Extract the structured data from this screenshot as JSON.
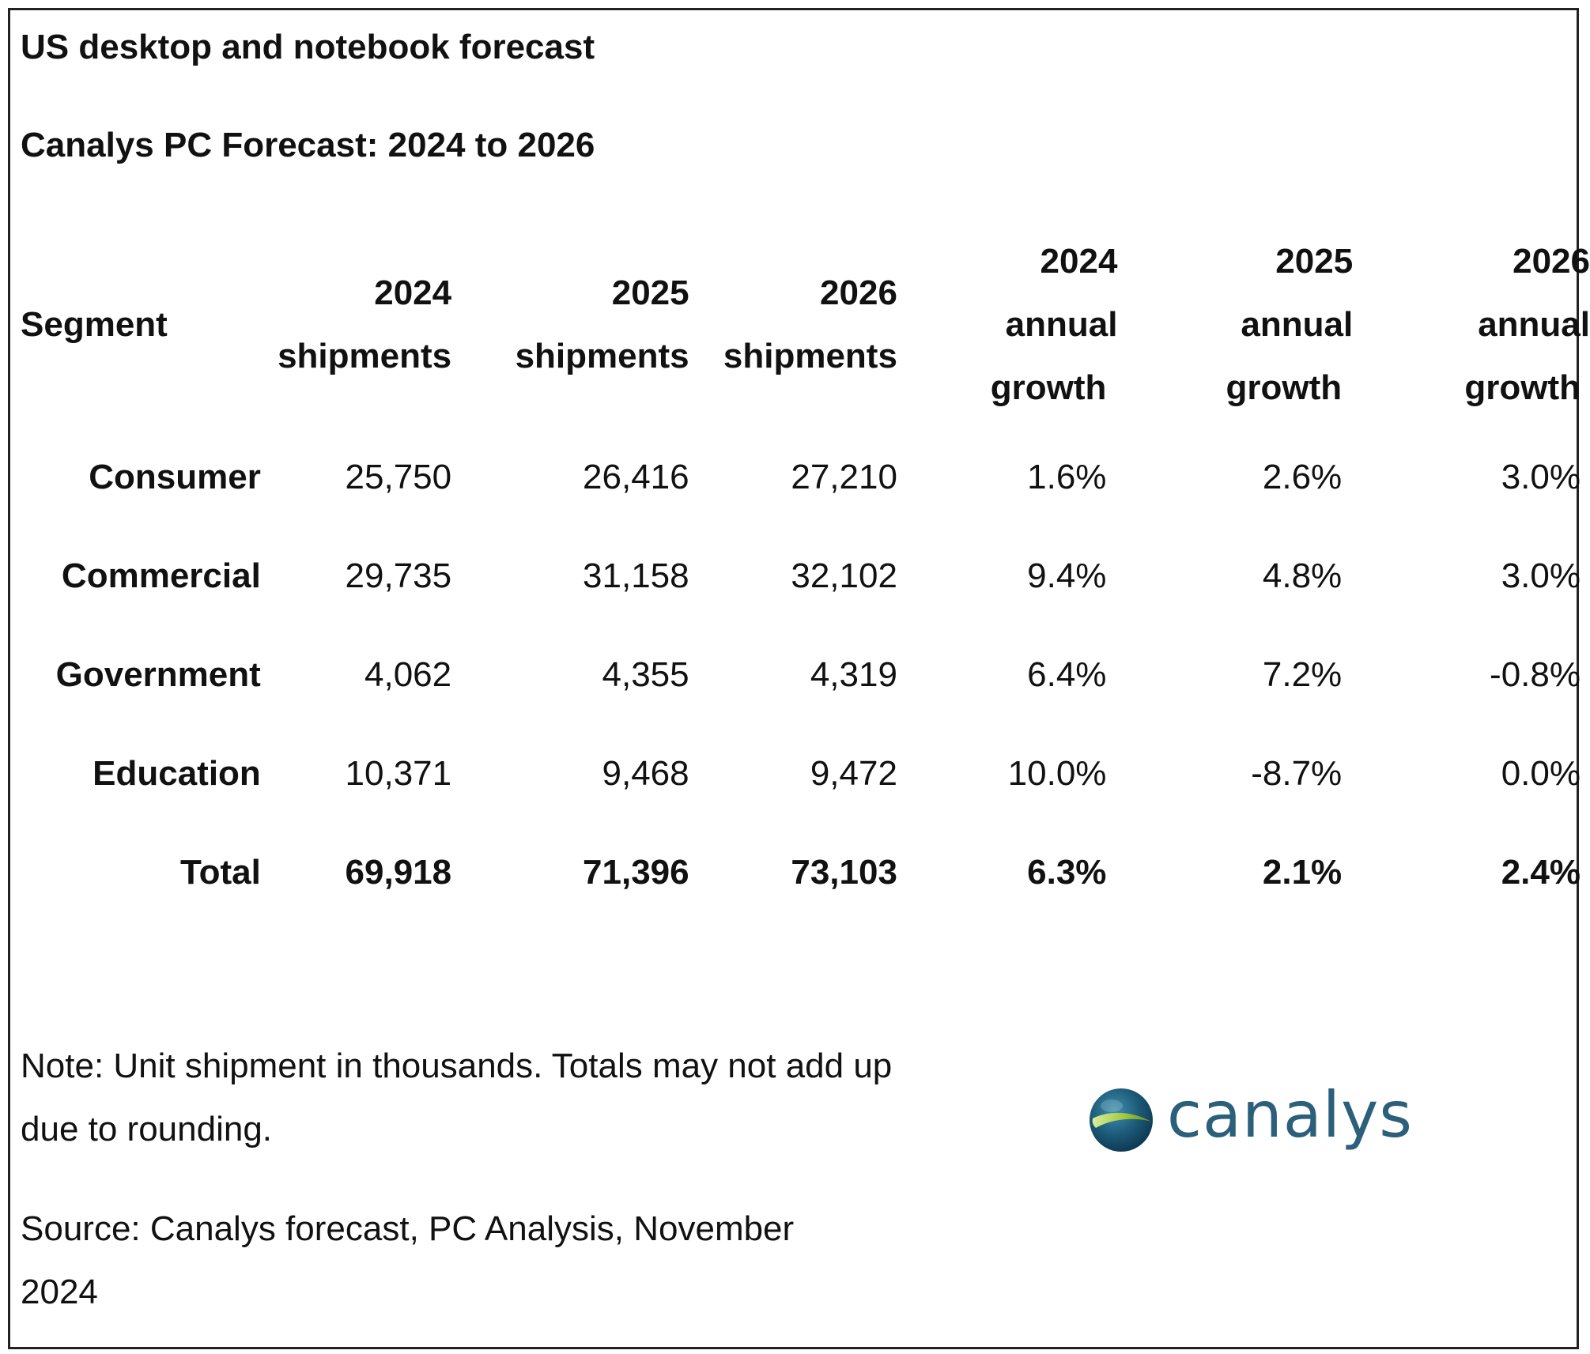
{
  "title": "US desktop and notebook forecast",
  "subtitle": "Canalys PC Forecast: 2024 to 2026",
  "table": {
    "headers": [
      {
        "line1": "",
        "line2": "Segment",
        "line3": ""
      },
      {
        "line1": "2024",
        "line2": "shipments",
        "line3": ""
      },
      {
        "line1": "2025",
        "line2": "shipments",
        "line3": ""
      },
      {
        "line1": "2026",
        "line2": "shipments",
        "line3": ""
      },
      {
        "line1": "2024",
        "line2": "annual",
        "line3": "growth"
      },
      {
        "line1": "2025",
        "line2": "annual",
        "line3": "growth"
      },
      {
        "line1": "2026",
        "line2": "annual",
        "line3": "growth"
      }
    ],
    "rows": [
      {
        "segment": "Consumer",
        "s2024": "25,750",
        "s2025": "26,416",
        "s2026": "27,210",
        "g2024": "1.6%",
        "g2025": "2.6%",
        "g2026": "3.0%"
      },
      {
        "segment": "Commercial",
        "s2024": "29,735",
        "s2025": "31,158",
        "s2026": "32,102",
        "g2024": "9.4%",
        "g2025": "4.8%",
        "g2026": "3.0%"
      },
      {
        "segment": "Government",
        "s2024": "4,062",
        "s2025": "4,355",
        "s2026": "4,319",
        "g2024": "6.4%",
        "g2025": "7.2%",
        "g2026": "-0.8%"
      },
      {
        "segment": "Education",
        "s2024": "10,371",
        "s2025": "9,468",
        "s2026": "9,472",
        "g2024": "10.0%",
        "g2025": "-8.7%",
        "g2026": "0.0%"
      }
    ],
    "total": {
      "segment": "Total",
      "s2024": "69,918",
      "s2025": "71,396",
      "s2026": "73,103",
      "g2024": "6.3%",
      "g2025": "2.1%",
      "g2026": "2.4%"
    }
  },
  "note": "Note: Unit shipment in thousands. Totals may not add up due to rounding.",
  "source": "Source: Canalys forecast, PC Analysis, November 2024",
  "logo": {
    "text": "canalys",
    "icon": "globe-icon",
    "color": "#2c5f7a"
  }
}
